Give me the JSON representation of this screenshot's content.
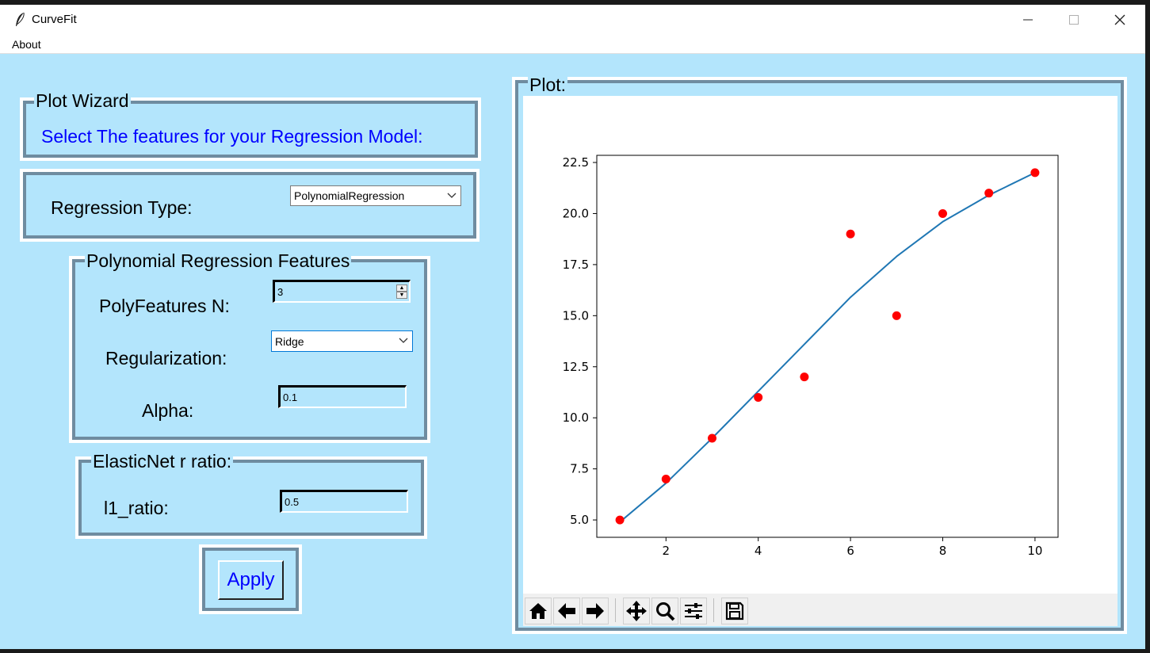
{
  "window": {
    "title": "CurveFit",
    "menu": [
      "About"
    ]
  },
  "wizard": {
    "legend": "Plot Wizard",
    "subtitle": "Select The features for your Regression Model:"
  },
  "regression": {
    "label": "Regression Type:",
    "value": "PolynomialRegression"
  },
  "poly": {
    "legend": "Polynomial Regression Features",
    "n_label": "PolyFeatures N:",
    "n_value": "3",
    "reg_label": "Regularization:",
    "reg_value": "Ridge",
    "alpha_label": "Alpha:",
    "alpha_value": "0.1"
  },
  "elastic": {
    "legend": "ElasticNet r ratio:",
    "l1_label": "l1_ratio:",
    "l1_value": "0.5"
  },
  "apply_label": "Apply",
  "plot": {
    "legend": "Plot:"
  },
  "colors": {
    "background": "#b3e5fc",
    "frame": "#6f8ca0",
    "accent_text": "#0000ff",
    "scatter": "#ff0000",
    "line": "#1f77b4"
  },
  "toolbar_icons": [
    "home-icon",
    "back-arrow-icon",
    "forward-arrow-icon",
    "pan-icon",
    "zoom-icon",
    "configure-subplots-icon",
    "save-icon"
  ],
  "chart_data": {
    "type": "scatter",
    "title": "",
    "xlabel": "",
    "ylabel": "",
    "xlim": [
      0.5,
      10.5
    ],
    "ylim": [
      4.15,
      22.85
    ],
    "xticks": [
      2,
      4,
      6,
      8,
      10
    ],
    "yticks": [
      5.0,
      7.5,
      10.0,
      12.5,
      15.0,
      17.5,
      20.0,
      22.5
    ],
    "grid": false,
    "series": [
      {
        "kind": "scatter",
        "x": [
          1,
          2,
          3,
          4,
          5,
          6,
          7,
          8,
          9,
          10
        ],
        "y": [
          5,
          7,
          9,
          11,
          12,
          19,
          15,
          20,
          21,
          22
        ]
      },
      {
        "kind": "line",
        "x": [
          1,
          2,
          3,
          4,
          5,
          6,
          7,
          8,
          9,
          10
        ],
        "y": [
          4.9,
          6.8,
          9.0,
          11.3,
          13.6,
          15.9,
          17.9,
          19.6,
          20.9,
          22.0
        ]
      }
    ]
  }
}
